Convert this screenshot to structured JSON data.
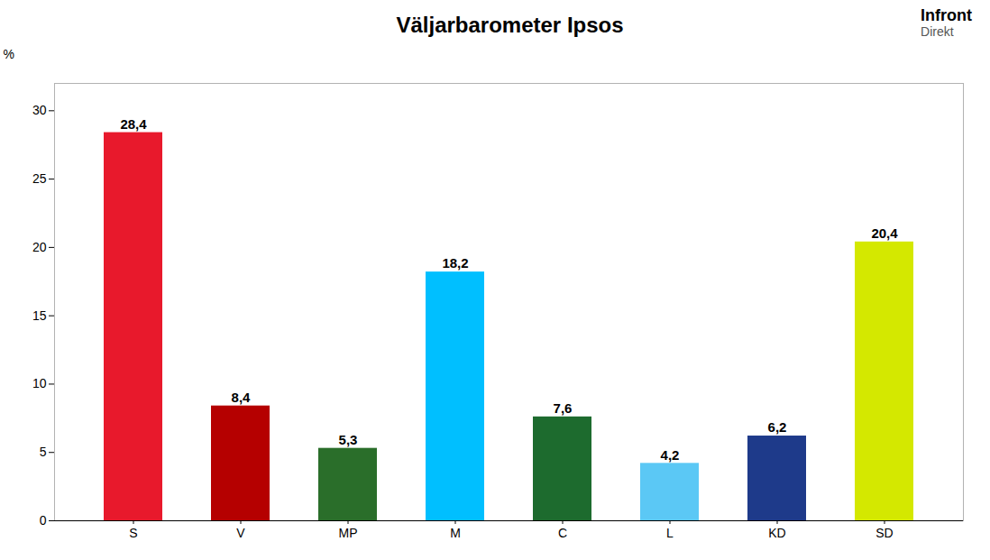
{
  "chart_data": {
    "type": "bar",
    "title": "Väljarbarometer Ipsos",
    "ylabel": "%",
    "categories": [
      "S",
      "V",
      "MP",
      "M",
      "C",
      "L",
      "KD",
      "SD"
    ],
    "values": [
      28.4,
      8.4,
      5.3,
      18.2,
      7.6,
      4.2,
      6.2,
      20.4
    ],
    "value_labels": [
      "28,4",
      "8,4",
      "5,3",
      "18,2",
      "7,6",
      "4,2",
      "6,2",
      "20,4"
    ],
    "colors": [
      "#e8192c",
      "#b50000",
      "#2a6e2a",
      "#00bfff",
      "#1d6b2e",
      "#5bc8f5",
      "#1e3a8a",
      "#d4e800"
    ],
    "ylim": [
      0,
      32
    ],
    "yticks": [
      0,
      5,
      10,
      15,
      20,
      25,
      30
    ],
    "data_labels": true,
    "grid": false,
    "annotations": [
      "Infront",
      "Direkt"
    ]
  }
}
